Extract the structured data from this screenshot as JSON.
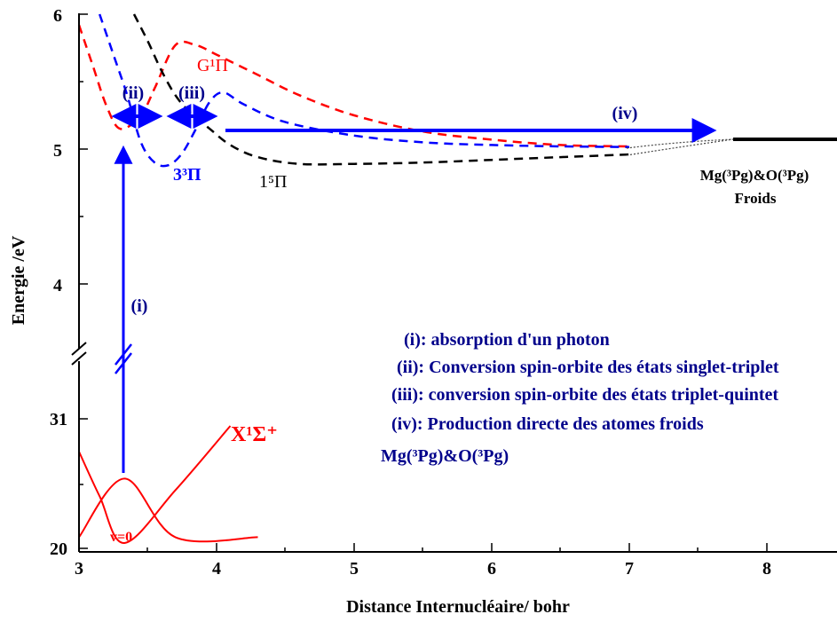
{
  "chart_data": {
    "type": "line",
    "x_axis": {
      "label": "Distance Internucléaire/ bohr",
      "range": [
        3.0,
        8.5
      ],
      "ticks": [
        "3",
        "4",
        "5",
        "6",
        "7",
        "8"
      ]
    },
    "y_axis": {
      "label": "Energie /eV",
      "upper_segment": {
        "range": [
          3.5,
          6.0
        ],
        "ticks": [
          "4",
          "5",
          "6"
        ]
      },
      "lower_segment": {
        "tick_labels": [
          "20",
          "31"
        ]
      },
      "broken": true
    },
    "colors": {
      "red": "#ff0000",
      "blue": "#0000ff",
      "black": "#000000",
      "dark_blue": "#00008b"
    },
    "series": [
      {
        "name": "G¹Π",
        "style": "dashed",
        "color": "#ff0000",
        "points": [
          [
            3.0,
            5.92
          ],
          [
            3.1,
            5.62
          ],
          [
            3.2,
            5.32
          ],
          [
            3.3,
            5.15
          ],
          [
            3.45,
            5.25
          ],
          [
            3.55,
            5.45
          ],
          [
            3.7,
            5.77
          ],
          [
            3.85,
            5.77
          ],
          [
            4.0,
            5.7
          ],
          [
            4.3,
            5.55
          ],
          [
            4.6,
            5.4
          ],
          [
            5.0,
            5.25
          ],
          [
            5.5,
            5.13
          ],
          [
            6.0,
            5.07
          ],
          [
            6.5,
            5.03
          ],
          [
            7.0,
            5.02
          ]
        ]
      },
      {
        "name": "3³Π",
        "style": "dashed",
        "color": "#0000ff",
        "points": [
          [
            3.15,
            6.0
          ],
          [
            3.25,
            5.7
          ],
          [
            3.35,
            5.4
          ],
          [
            3.45,
            5.05
          ],
          [
            3.55,
            4.9
          ],
          [
            3.65,
            4.88
          ],
          [
            3.75,
            4.97
          ],
          [
            3.85,
            5.15
          ],
          [
            3.95,
            5.35
          ],
          [
            4.05,
            5.42
          ],
          [
            4.2,
            5.33
          ],
          [
            4.5,
            5.2
          ],
          [
            5.0,
            5.1
          ],
          [
            5.5,
            5.05
          ],
          [
            6.0,
            5.03
          ],
          [
            6.5,
            5.02
          ],
          [
            7.0,
            5.015
          ]
        ]
      },
      {
        "name": "1⁵Π",
        "style": "dashed",
        "color": "#000000",
        "points": [
          [
            3.4,
            6.0
          ],
          [
            3.5,
            5.8
          ],
          [
            3.6,
            5.58
          ],
          [
            3.7,
            5.4
          ],
          [
            3.8,
            5.28
          ],
          [
            3.95,
            5.15
          ],
          [
            4.1,
            5.03
          ],
          [
            4.3,
            4.94
          ],
          [
            4.6,
            4.89
          ],
          [
            5.0,
            4.89
          ],
          [
            5.5,
            4.9
          ],
          [
            6.0,
            4.92
          ],
          [
            6.5,
            4.94
          ],
          [
            7.0,
            4.96
          ]
        ]
      },
      {
        "name": "X¹Σ⁺",
        "style": "solid",
        "color": "#ff0000",
        "segment": "lower",
        "shape": "potential-well",
        "points": [
          [
            3.0,
            0.78
          ],
          [
            3.15,
            0.4
          ],
          [
            3.33,
            0.0
          ],
          [
            3.7,
            0.45
          ],
          [
            4.1,
            1.0
          ]
        ]
      },
      {
        "name": "v=0",
        "style": "solid",
        "color": "#ff0000",
        "segment": "lower",
        "shape": "wavefunction",
        "points": [
          [
            3.0,
            0.05
          ],
          [
            3.33,
            0.55
          ],
          [
            3.7,
            0.05
          ],
          [
            4.3,
            0.05
          ]
        ]
      }
    ],
    "asymptote": {
      "label": "Mg(³Pg)&O(³Pg)",
      "sublabel": "Froids",
      "energy": 5.08,
      "x_range": [
        7.7,
        8.5
      ]
    },
    "arrows": [
      {
        "id": "(i)",
        "type": "vertical",
        "x": 3.33,
        "from": "v=0",
        "to": 5.05
      },
      {
        "id": "(ii)",
        "type": "double",
        "x_range": [
          3.25,
          3.58
        ],
        "y": 5.24
      },
      {
        "id": "(iii)",
        "type": "double",
        "x_range": [
          3.67,
          3.98
        ],
        "y": 5.24
      },
      {
        "id": "(iv)",
        "type": "horizontal",
        "x_range": [
          4.1,
          7.65
        ],
        "y": 5.14
      }
    ],
    "legend_notes": [
      "(i): absorption d'un photon",
      "(ii): Conversion spin-orbite des états singlet-triplet",
      "(iii): conversion spin-orbite des états triplet-quintet",
      "(iv): Production directe des atomes froids",
      "Mg(³Pg)&O(³Pg)"
    ]
  }
}
